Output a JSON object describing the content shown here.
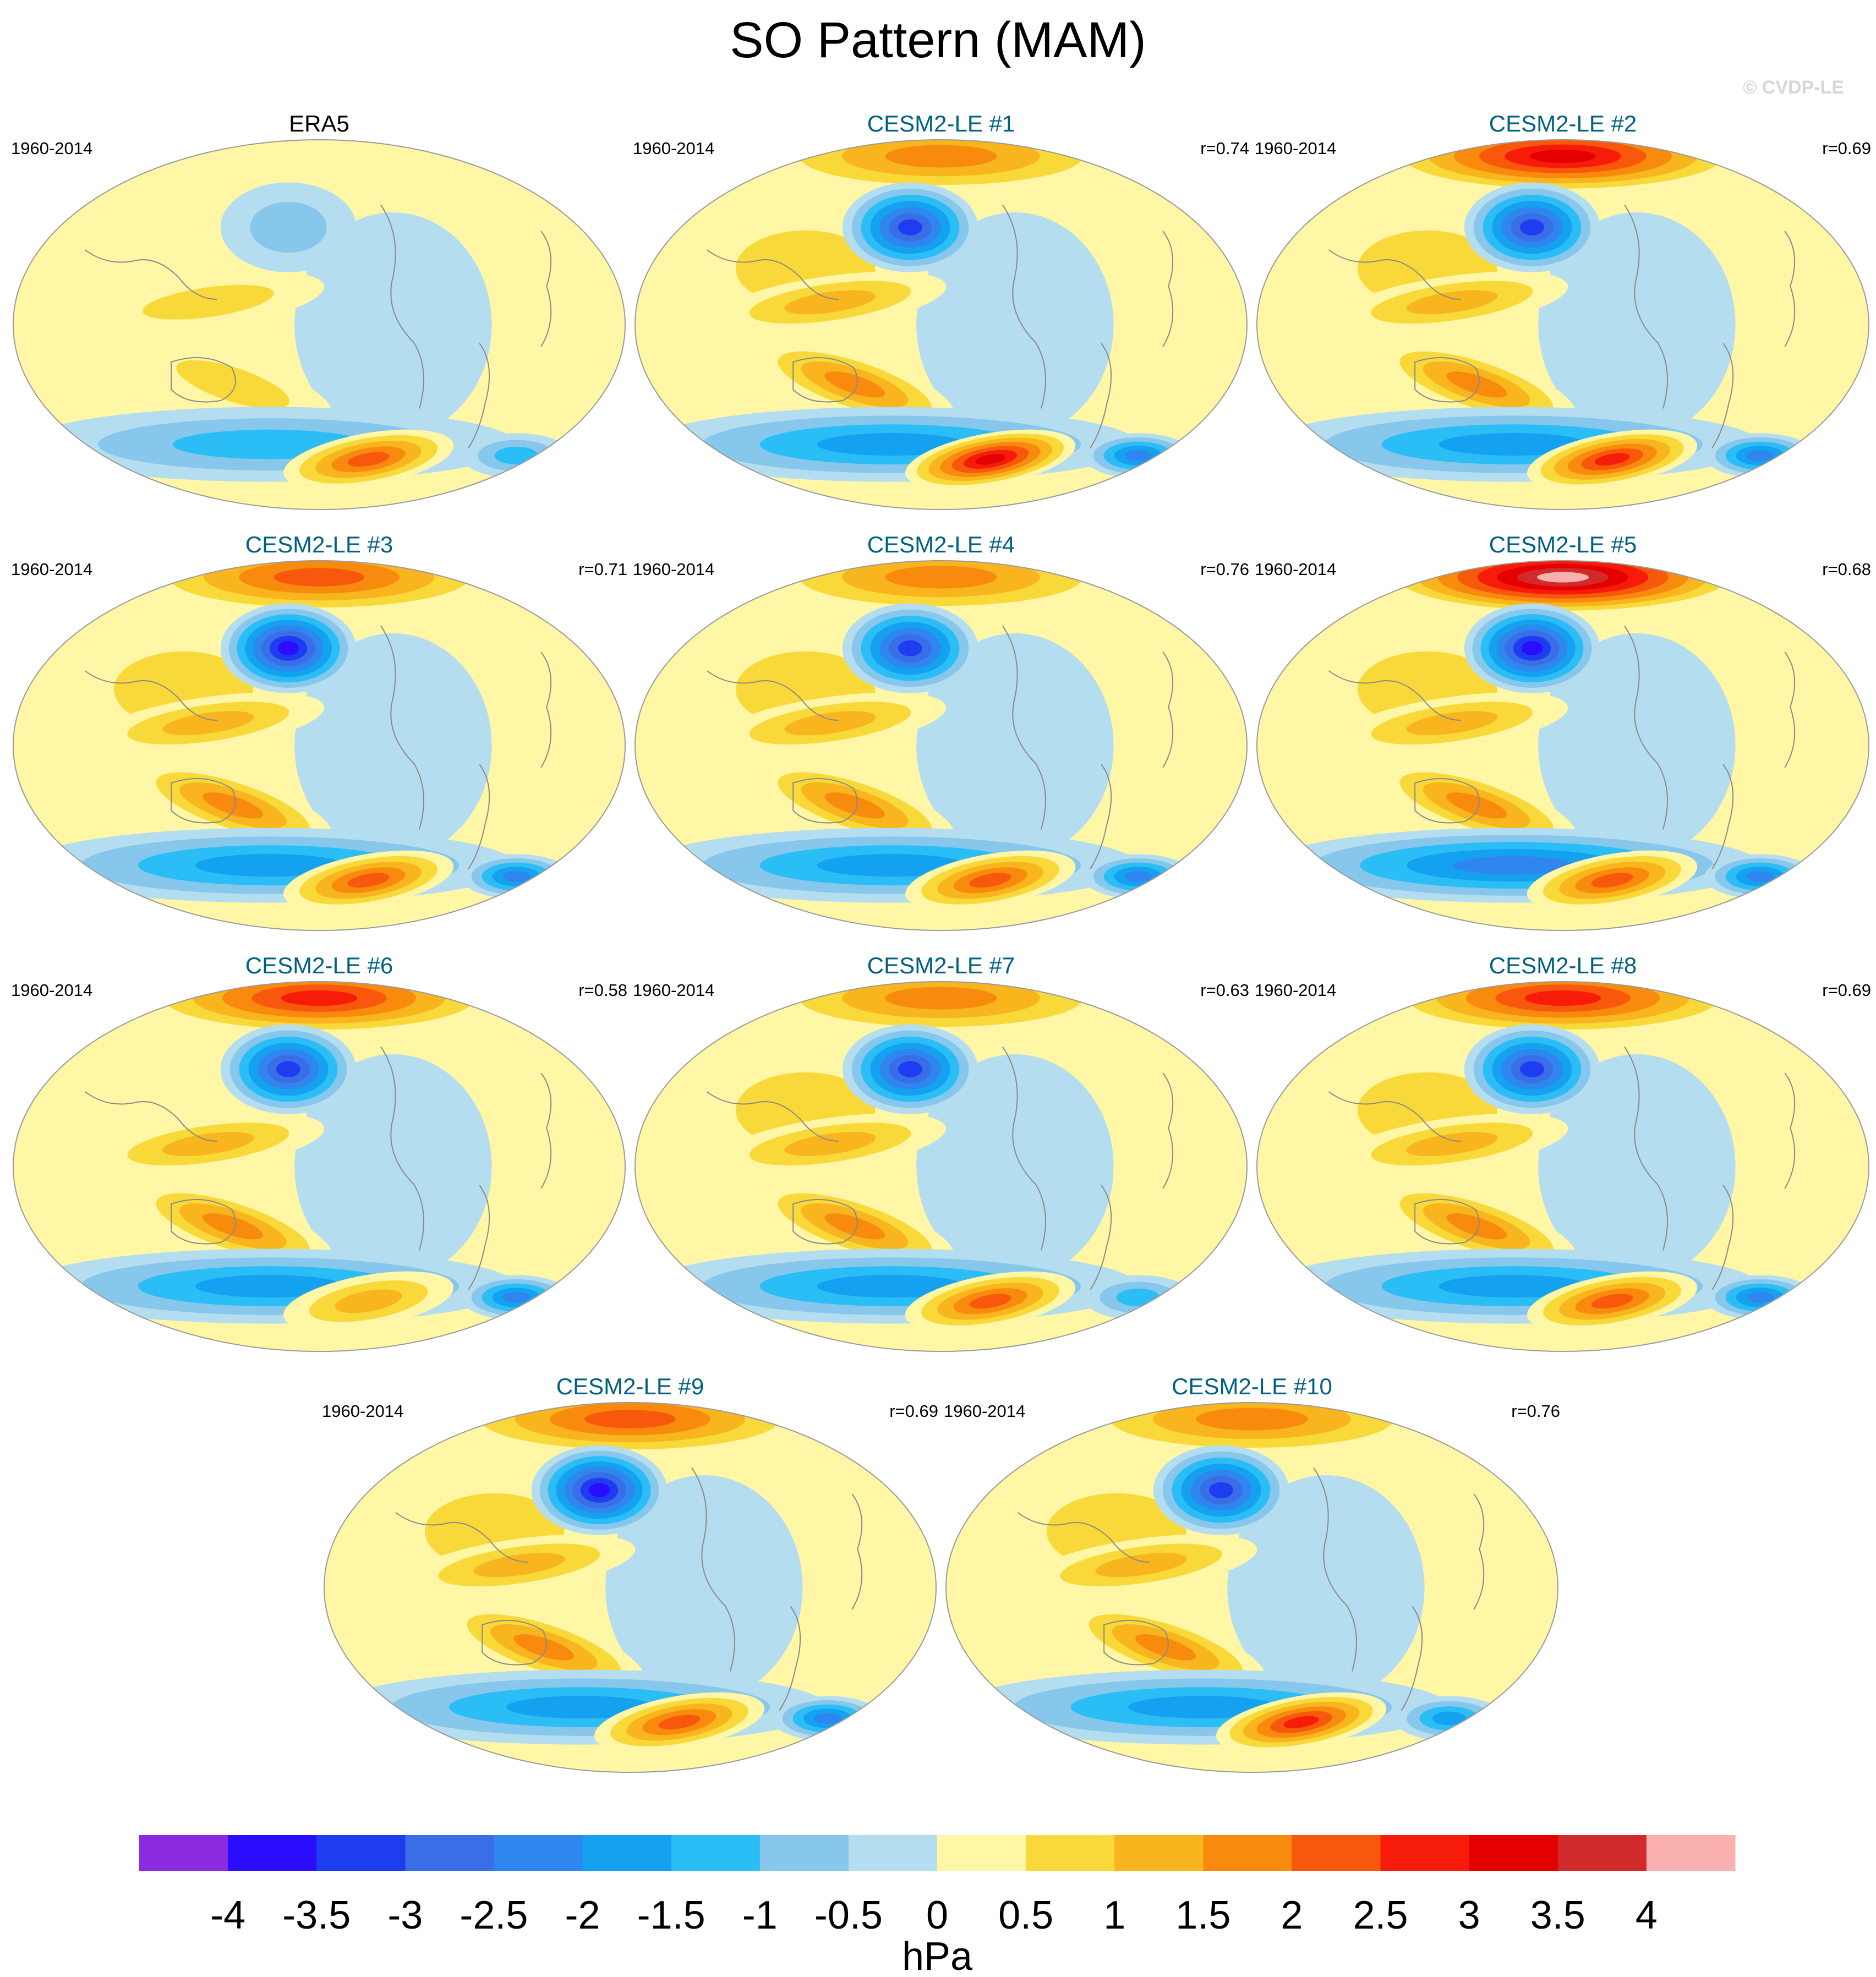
{
  "page": {
    "title": "SO Pattern (MAM)",
    "watermark": "© CVDP-LE"
  },
  "chart_data": {
    "type": "heatmap",
    "title": "SO Pattern (MAM)",
    "units": "hPa",
    "colorbar": {
      "ticks": [
        "-4",
        "-3.5",
        "-3",
        "-2.5",
        "-2",
        "-1.5",
        "-1",
        "-0.5",
        "0",
        "0.5",
        "1",
        "1.5",
        "2",
        "2.5",
        "3",
        "3.5",
        "4"
      ],
      "colors": [
        "#8a2be2",
        "#2a0cff",
        "#1e3cf0",
        "#3a6ee6",
        "#2f86ee",
        "#14a2f0",
        "#2bbdf5",
        "#87c7ec",
        "#b5ddf0",
        "#fff7a6",
        "#f9d93a",
        "#f8b51d",
        "#f88a0e",
        "#f7580c",
        "#f71c0a",
        "#e50000",
        "#d12a2a",
        "#fbb0b0"
      ]
    },
    "panels": [
      {
        "name": "ERA5",
        "period": "1960-2014",
        "r": "",
        "title_color": "#000000",
        "features": {
          "ak": -0.8,
          "np": 0,
          "arc": 0.3,
          "ip": 0.5,
          "au": 0.8,
          "sp": 2.4,
          "so": -1.2,
          "sa": -1.4
        }
      },
      {
        "name": "CESM2-LE #1",
        "period": "1960-2014",
        "r": "r=0.74",
        "title_color": "#006080",
        "features": {
          "ak": -3.3,
          "np": 0.5,
          "arc": 1.5,
          "ip": 1.4,
          "au": 1.8,
          "sp": 3.0,
          "so": -1.6,
          "sa": -2.4
        }
      },
      {
        "name": "CESM2-LE #2",
        "period": "1960-2014",
        "r": "r=0.69",
        "title_color": "#006080",
        "features": {
          "ak": -3.2,
          "np": 0.5,
          "arc": 3.3,
          "ip": 1.4,
          "au": 1.5,
          "sp": 2.9,
          "so": -1.7,
          "sa": -2.2
        }
      },
      {
        "name": "CESM2-LE #3",
        "period": "1960-2014",
        "r": "r=0.71",
        "title_color": "#006080",
        "features": {
          "ak": -3.7,
          "np": 0.5,
          "arc": 2.0,
          "ip": 1.4,
          "au": 1.6,
          "sp": 2.1,
          "so": -1.8,
          "sa": -2.0
        }
      },
      {
        "name": "CESM2-LE #4",
        "period": "1960-2014",
        "r": "r=0.76",
        "title_color": "#006080",
        "features": {
          "ak": -3.1,
          "np": 0.5,
          "arc": 1.6,
          "ip": 1.4,
          "au": 1.6,
          "sp": 2.3,
          "so": -1.6,
          "sa": -2.1
        }
      },
      {
        "name": "CESM2-LE #5",
        "period": "1960-2014",
        "r": "r=0.68",
        "title_color": "#006080",
        "features": {
          "ak": -3.5,
          "np": 0.5,
          "arc": 4.1,
          "ip": 1.4,
          "au": 1.5,
          "sp": 2.1,
          "so": -2.0,
          "sa": -2.0
        }
      },
      {
        "name": "CESM2-LE #6",
        "period": "1960-2014",
        "r": "r=0.58",
        "title_color": "#006080",
        "features": {
          "ak": -3.2,
          "np": 0.4,
          "arc": 2.6,
          "ip": 1.3,
          "au": 1.5,
          "sp": 1.2,
          "so": -1.8,
          "sa": -2.0
        }
      },
      {
        "name": "CESM2-LE #7",
        "period": "1960-2014",
        "r": "r=0.63",
        "title_color": "#006080",
        "features": {
          "ak": -3.0,
          "np": 0.5,
          "arc": 1.6,
          "ip": 1.4,
          "au": 1.6,
          "sp": 2.1,
          "so": -1.5,
          "sa": -1.2
        }
      },
      {
        "name": "CESM2-LE #8",
        "period": "1960-2014",
        "r": "r=0.69",
        "title_color": "#006080",
        "features": {
          "ak": -3.2,
          "np": 0.5,
          "arc": 2.9,
          "ip": 1.4,
          "au": 1.6,
          "sp": 2.1,
          "so": -1.8,
          "sa": -2.0
        }
      },
      {
        "name": "CESM2-LE #9",
        "period": "1960-2014",
        "r": "r=0.69",
        "title_color": "#006080",
        "features": {
          "ak": -3.7,
          "np": 0.5,
          "arc": 2.1,
          "ip": 1.4,
          "au": 1.6,
          "sp": 2.1,
          "so": -1.5,
          "sa": -2.0
        }
      },
      {
        "name": "CESM2-LE #10",
        "period": "1960-2014",
        "r": "r=0.76",
        "title_color": "#006080",
        "features": {
          "ak": -3.1,
          "np": 0.5,
          "arc": 1.6,
          "ip": 1.4,
          "au": 1.6,
          "sp": 2.9,
          "so": -1.5,
          "sa": -1.6
        }
      }
    ]
  }
}
